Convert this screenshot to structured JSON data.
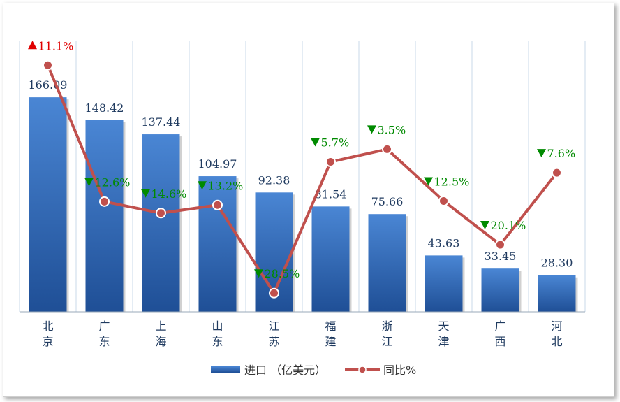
{
  "chart_data": {
    "type": "bar",
    "categories": [
      "北京",
      "广东",
      "上海",
      "山东",
      "江苏",
      "福建",
      "浙江",
      "天津",
      "广西",
      "河北"
    ],
    "series": [
      {
        "name": "进口（亿美元）",
        "type": "bar",
        "values": [
          166.09,
          148.42,
          137.44,
          104.97,
          92.38,
          81.54,
          75.66,
          43.63,
          33.45,
          28.3
        ],
        "labels": [
          "166.09",
          "148.42",
          "137.44",
          "104.97",
          "92.38",
          "81.54",
          "75.66",
          "43.63",
          "33.45",
          "28.30"
        ]
      },
      {
        "name": "同比%",
        "type": "line",
        "values": [
          11.1,
          -12.6,
          -14.6,
          -13.2,
          -28.5,
          -5.7,
          -3.5,
          -12.5,
          -20.1,
          -7.6
        ],
        "labels": [
          "11.1%",
          "12.6%",
          "14.6%",
          "13.2%",
          "28.5%",
          "5.7%",
          "3.5%",
          "12.5%",
          "20.1%",
          "7.6%"
        ]
      }
    ],
    "ylim": [
      0,
      210
    ],
    "y2lim": [
      -45,
      20
    ],
    "grid": "vertical",
    "legend": "bottom"
  },
  "colors": {
    "bar_top": "#4a86d4",
    "bar_bottom": "#1f4f96",
    "line": "#c0504d",
    "marker": "#c0504d",
    "up": "#e00000",
    "down": "#008a00",
    "grid": "#c9d9ea"
  },
  "legend": {
    "bar_label": "进口 （亿美元）",
    "line_label": "同比%"
  }
}
